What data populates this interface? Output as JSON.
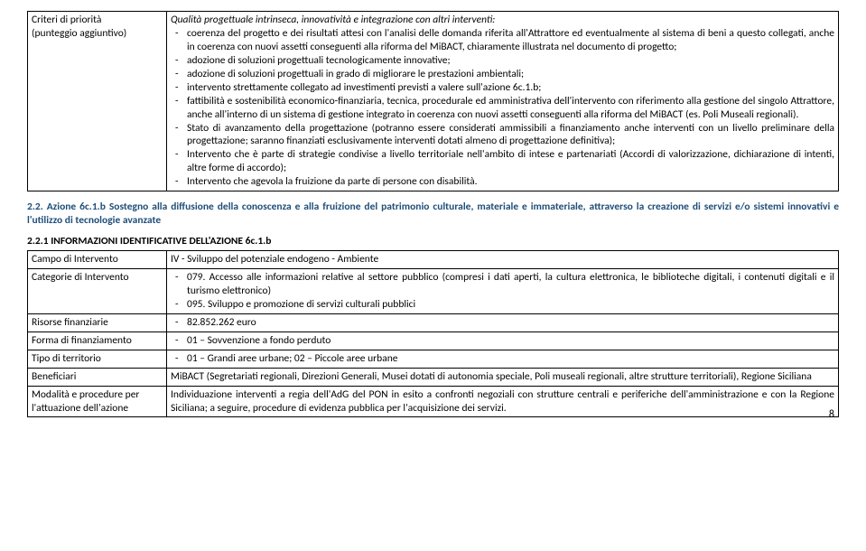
{
  "table1": {
    "row": {
      "label_line1": "Criteri di priorità",
      "label_line2": "(punteggio aggiuntivo)",
      "intro": "Qualità progettuale intrinseca, innovatività e integrazione con altri interventi:",
      "items1": [
        "coerenza del progetto e dei risultati attesi con l'analisi delle domanda riferita all'Attrattore ed eventualmente al sistema di beni a questo collegati, anche in coerenza con nuovi assetti conseguenti alla riforma del MiBACT, chiaramente illustrata nel documento di progetto;",
        "adozione di soluzioni progettuali tecnologicamente innovative;",
        "adozione di soluzioni progettuali in grado di migliorare le prestazioni ambientali;",
        "intervento strettamente collegato ad investimenti previsti a valere sull'azione 6c.1.b;",
        "fattibilità e sostenibilità economico-finanziaria, tecnica, procedurale ed amministrativa dell'intervento con riferimento alla gestione del singolo Attrattore, anche all'interno di un sistema di gestione integrato  in coerenza con nuovi assetti conseguenti alla riforma del MiBACT (es. Poli Museali regionali).",
        "Stato di avanzamento della progettazione (potranno essere considerati ammissibili a finanziamento anche interventi con un livello preliminare della progettazione; saranno finanziati esclusivamente interventi dotati almeno di progettazione definitiva);",
        "Intervento che è parte di strategie condivise a livello territoriale nell'ambito di intese e partenariati (Accordi di valorizzazione, dichiarazione di intenti, altre forme di accordo);",
        "Intervento che agevola la fruizione da parte di persone con disabilità."
      ]
    }
  },
  "section22": {
    "prefix": "2.2. Azione 6c.1.b",
    "rest": " Sostegno alla diffusione della conoscenza e alla fruizione del patrimonio culturale, materiale e immateriale, attraverso la creazione di servizi e/o sistemi innovativi e l'utilizzo di tecnologie avanzate"
  },
  "subsection221": "2.2.1 INFORMAZIONI IDENTIFICATIVE DELL'AZIONE 6c.1.b",
  "table2": {
    "rows": [
      {
        "label": "Campo di Intervento",
        "plain": "IV - Sviluppo del potenziale endogeno - Ambiente"
      },
      {
        "label": "Categorie di Intervento",
        "bullets": [
          "079. Accesso alle informazioni relative al settore pubblico (compresi i dati aperti, la cultura elettronica, le biblioteche digitali, i contenuti digitali e il turismo elettronico)",
          "095. Sviluppo e promozione di servizi culturali pubblici"
        ]
      },
      {
        "label": "Risorse finanziarie",
        "bullets": [
          "82.852.262 euro"
        ]
      },
      {
        "label": "Forma di finanziamento",
        "bullets": [
          "01 – Sovvenzione a fondo perduto"
        ]
      },
      {
        "label": "Tipo di territorio",
        "bullets": [
          "01 – Grandi aree urbane; 02 – Piccole aree urbane"
        ]
      },
      {
        "label": "Beneficiari",
        "plain": "MiBACT (Segretariati regionali, Direzioni Generali, Musei dotati di autonomia speciale, Poli museali regionali, altre strutture territoriali), Regione Siciliana"
      },
      {
        "label": "Modalità e procedure per l'attuazione dell'azione",
        "plain": "Individuazione interventi a  regia dell'AdG del PON in esito a confronti negoziali con strutture centrali e periferiche dell'amministrazione e con la Regione Siciliana; a seguire,  procedure di evidenza pubblica per l'acquisizione dei servizi."
      }
    ]
  },
  "pageNumber": "8"
}
